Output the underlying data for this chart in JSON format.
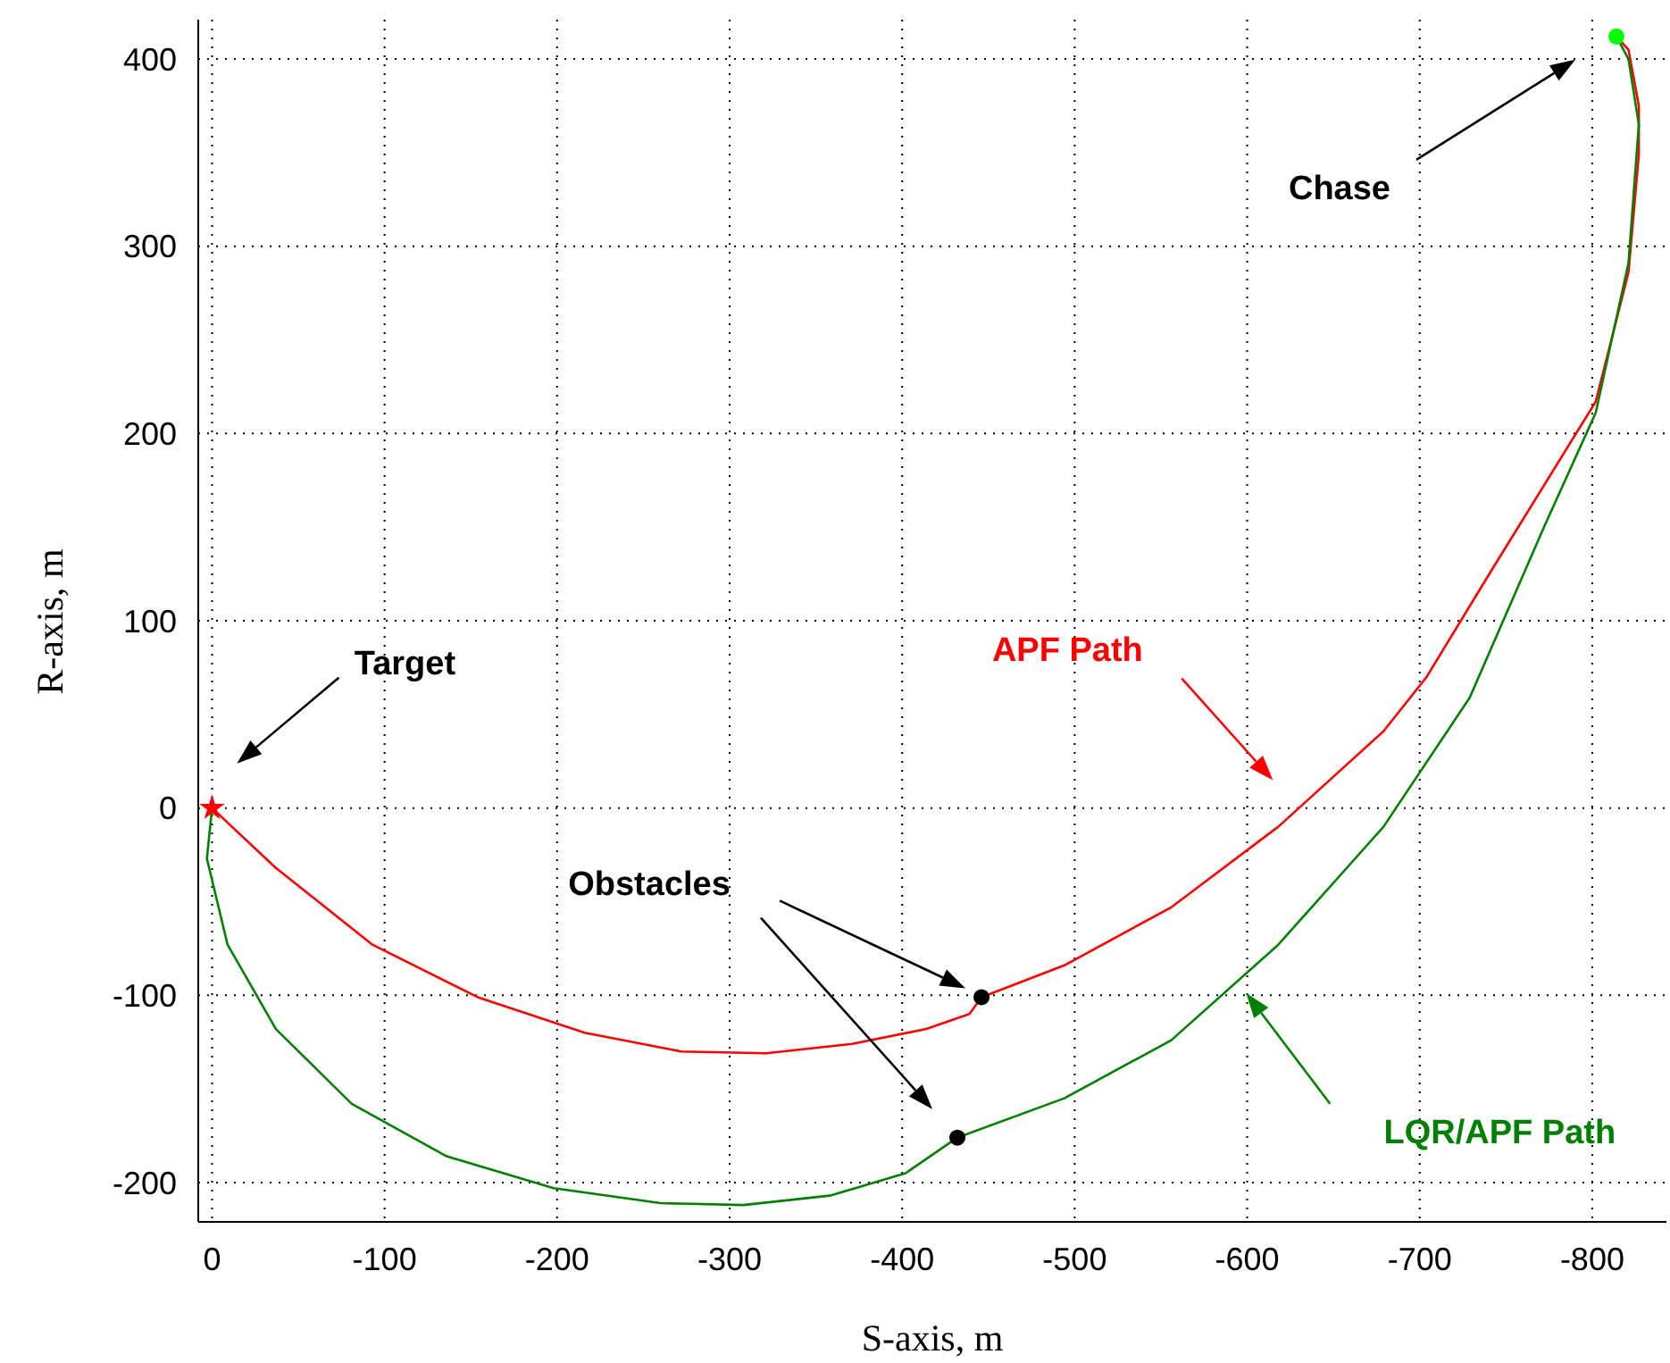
{
  "chart_data": {
    "type": "line",
    "xlabel": "S-axis, m",
    "ylabel": "R-axis, m",
    "xlim": [
      8,
      -843
    ],
    "ylim": [
      -221,
      421
    ],
    "xticks": [
      0,
      -100,
      -200,
      -300,
      -400,
      -500,
      -600,
      -700,
      -800
    ],
    "yticks": [
      -200,
      -100,
      0,
      100,
      200,
      300,
      400
    ],
    "grid": true,
    "series": [
      {
        "name": "APF Path",
        "color": "#ff0000",
        "x": [
          0,
          -37,
          -93,
          -154,
          -216,
          -272,
          -321,
          -371,
          -414,
          -439,
          -446,
          -494,
          -556,
          -618,
          -679,
          -704,
          -741,
          -802,
          -821,
          -827,
          -827,
          -821,
          -814
        ],
        "values": [
          0,
          -32,
          -73,
          -101,
          -120,
          -130,
          -131,
          -126,
          -118,
          -110,
          -101,
          -84,
          -53,
          -10,
          41,
          70,
          126,
          217,
          286,
          349,
          375,
          405,
          412
        ]
      },
      {
        "name": "LQR/APF Path",
        "color": "#008000",
        "x": [
          0,
          3,
          -9,
          -37,
          -81,
          -136,
          -198,
          -260,
          -308,
          -358,
          -402,
          -432,
          -494,
          -556,
          -618,
          -679,
          -729,
          -772,
          -802,
          -821,
          -827,
          -821,
          -814
        ],
        "values": [
          0,
          -27,
          -73,
          -118,
          -158,
          -186,
          -203,
          -211,
          -212,
          -207,
          -195,
          -176,
          -155,
          -124,
          -73,
          -10,
          59,
          150,
          211,
          291,
          365,
          400,
          412
        ]
      },
      {
        "color": "#ff0000",
        "type": "scatter",
        "marker": "star",
        "x": [
          0
        ],
        "values": [
          0
        ]
      },
      {
        "color": "#00ff00",
        "type": "scatter",
        "marker": "circle",
        "x": [
          -814
        ],
        "values": [
          412
        ]
      },
      {
        "color": "#000000",
        "type": "scatter",
        "marker": "circle",
        "x": [
          -446,
          -432
        ],
        "values": [
          -101,
          -176
        ]
      }
    ],
    "annotations": [
      "Target",
      "Chase",
      "Obstacles"
    ]
  }
}
